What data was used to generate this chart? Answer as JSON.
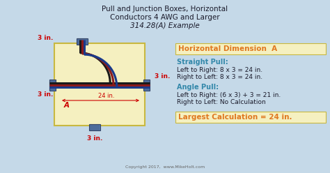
{
  "title_line1": "Pull and Junction Boxes, Horizontal",
  "title_line2": "Conductors 4 AWG and Larger",
  "title_line3": "314.28(A) Example",
  "bg_color": "#c5d9e8",
  "box_color": "#f5f0c0",
  "box_edge_color": "#c8b840",
  "highlight_box_color": "#f5f0c0",
  "highlight_box_edge": "#c8b840",
  "dim_label_color": "#cc0000",
  "teal_color": "#3388aa",
  "dark_text": "#1a1a2a",
  "orange_color": "#e07820",
  "copyright": "Copyright 2017,  www.MikeHolt.com",
  "horiz_dim_label": "Horizontal Dimension  A",
  "straight_pull_label": "Straight Pull:",
  "straight_pull_1": "Left to Right: 8 x 3 = 24 in.",
  "straight_pull_2": "Right to Left: 8 x 3 = 24 in.",
  "angle_pull_label": "Angle Pull:",
  "angle_pull_1": "Left to Right: (6 x 3) + 3 = 21 in.",
  "angle_pull_2": "Right to Left: No Calculation",
  "largest_calc": "Largest Calculation = 24 in.",
  "dim_3in": "3 in.",
  "dim_24in": "24 in.",
  "dim_A": "A",
  "wire_colors": [
    "#1a1a1a",
    "#8b1a1a",
    "#1a3a8a"
  ],
  "connector_color": "#5577aa",
  "connector_edge": "#334466"
}
